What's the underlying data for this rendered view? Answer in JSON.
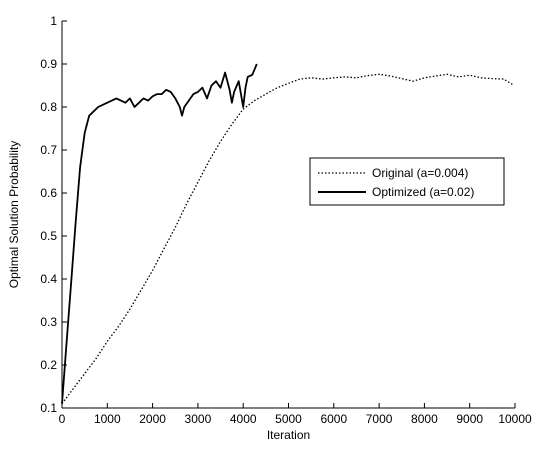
{
  "chart_data": {
    "type": "line",
    "title": "",
    "xlabel": "Iteration",
    "ylabel": "Optimal Solution Probability",
    "xlim": [
      0,
      10000
    ],
    "ylim": [
      0.1,
      1.0
    ],
    "xticks": [
      0,
      1000,
      2000,
      3000,
      4000,
      5000,
      6000,
      7000,
      8000,
      9000,
      10000
    ],
    "xtick_labels": [
      "0",
      "1000",
      "2000",
      "3000",
      "4000",
      "5000",
      "6000",
      "7000",
      "8000",
      "9000",
      "10000"
    ],
    "yticks": [
      0.1,
      0.2,
      0.3,
      0.4,
      0.5,
      0.6,
      0.7,
      0.8,
      0.9,
      1.0
    ],
    "ytick_labels": [
      "0.1",
      "0.2",
      "0.3",
      "0.4",
      "0.5",
      "0.6",
      "0.7",
      "0.8",
      "0.9",
      "1"
    ],
    "grid": false,
    "legend_position": "right-middle",
    "series": [
      {
        "name": "Original (a=0.004)",
        "style": "dotted",
        "color": "#000000",
        "x": [
          0,
          250,
          500,
          750,
          1000,
          1250,
          1500,
          1750,
          2000,
          2250,
          2500,
          2750,
          3000,
          3250,
          3500,
          3750,
          4000,
          4250,
          4500,
          4750,
          5000,
          5250,
          5500,
          5750,
          6000,
          6250,
          6500,
          6750,
          7000,
          7250,
          7500,
          7750,
          8000,
          8250,
          8500,
          8750,
          9000,
          9250,
          9500,
          9750,
          9950
        ],
        "y": [
          0.11,
          0.145,
          0.18,
          0.215,
          0.255,
          0.29,
          0.33,
          0.375,
          0.42,
          0.47,
          0.52,
          0.575,
          0.625,
          0.675,
          0.72,
          0.76,
          0.795,
          0.815,
          0.83,
          0.845,
          0.855,
          0.865,
          0.868,
          0.865,
          0.868,
          0.87,
          0.868,
          0.873,
          0.876,
          0.872,
          0.866,
          0.86,
          0.868,
          0.872,
          0.876,
          0.87,
          0.874,
          0.868,
          0.866,
          0.865,
          0.852
        ]
      },
      {
        "name": "Optimized (a=0.02)",
        "style": "solid",
        "color": "#000000",
        "x": [
          0,
          100,
          200,
          300,
          400,
          500,
          600,
          700,
          800,
          900,
          1000,
          1100,
          1200,
          1300,
          1400,
          1500,
          1600,
          1700,
          1800,
          1900,
          2000,
          2100,
          2200,
          2300,
          2400,
          2500,
          2600,
          2650,
          2700,
          2800,
          2900,
          3000,
          3100,
          3200,
          3300,
          3400,
          3500,
          3600,
          3700,
          3750,
          3800,
          3900,
          4000,
          4050,
          4100,
          4200,
          4300
        ],
        "y": [
          0.11,
          0.25,
          0.39,
          0.53,
          0.66,
          0.74,
          0.78,
          0.79,
          0.8,
          0.805,
          0.81,
          0.815,
          0.82,
          0.815,
          0.81,
          0.82,
          0.8,
          0.81,
          0.82,
          0.815,
          0.825,
          0.83,
          0.83,
          0.84,
          0.835,
          0.82,
          0.8,
          0.78,
          0.8,
          0.815,
          0.83,
          0.835,
          0.845,
          0.82,
          0.85,
          0.86,
          0.845,
          0.88,
          0.84,
          0.81,
          0.835,
          0.86,
          0.8,
          0.845,
          0.87,
          0.875,
          0.9
        ]
      }
    ]
  }
}
